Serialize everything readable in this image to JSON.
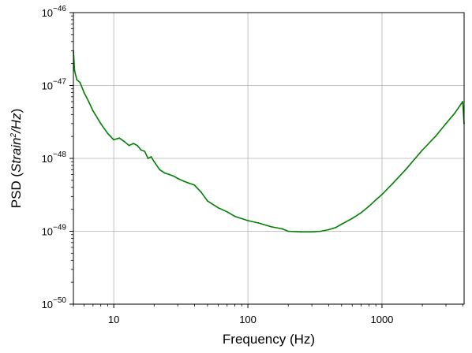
{
  "chart_data": {
    "type": "line",
    "title": "",
    "xlabel": "Frequency (Hz)",
    "ylabel": {
      "prefix": "PSD (",
      "strain": "Strain",
      "exp": "2",
      "rest": "/Hz",
      "suffix": ")"
    },
    "x_scale": "log",
    "y_scale": "log",
    "xlim": [
      5,
      4096
    ],
    "ylim": [
      1e-50,
      1e-46
    ],
    "grid": true,
    "x_ticks": [
      {
        "value": 10,
        "label": "10"
      },
      {
        "value": 100,
        "label": "100"
      },
      {
        "value": 1000,
        "label": "1000"
      }
    ],
    "y_ticks": [
      {
        "value": 1e-50,
        "base": "10",
        "exp": "−50"
      },
      {
        "value": 1e-49,
        "base": "10",
        "exp": "−49"
      },
      {
        "value": 1e-48,
        "base": "10",
        "exp": "−48"
      },
      {
        "value": 1e-47,
        "base": "10",
        "exp": "−47"
      },
      {
        "value": 1e-46,
        "base": "10",
        "exp": "−46"
      }
    ],
    "series": [
      {
        "color": "#008000",
        "x": [
          5.0,
          5.1,
          5.3,
          5.6,
          6.0,
          6.5,
          7.0,
          8.0,
          9.0,
          10.0,
          11.0,
          12.0,
          13.0,
          14.0,
          15.0,
          16.0,
          17.0,
          18.0,
          19.0,
          20.0,
          22.0,
          24.0,
          26.0,
          28.0,
          30.0,
          33.0,
          36.0,
          40.0,
          45.0,
          50.0,
          60.0,
          70.0,
          80.0,
          100.0,
          120.0,
          150.0,
          180.0,
          200.0,
          250.0,
          300.0,
          350.0,
          400.0,
          450.0,
          500.0,
          600.0,
          700.0,
          800.0,
          900.0,
          1000.0,
          1200.0,
          1500.0,
          2000.0,
          2500.0,
          3000.0,
          3500.0,
          4000.0,
          4096.0
        ],
        "y": [
          3e-47,
          1.6e-47,
          1.2e-47,
          1.1e-47,
          8e-48,
          6e-48,
          4.5e-48,
          3e-48,
          2.2e-48,
          1.8e-48,
          1.9e-48,
          1.7e-48,
          1.5e-48,
          1.6e-48,
          1.5e-48,
          1.3e-48,
          1.25e-48,
          1e-48,
          1.05e-48,
          9e-49,
          7e-49,
          6.3e-49,
          6e-49,
          5.7e-49,
          5.3e-49,
          4.9e-49,
          4.6e-49,
          4.3e-49,
          3.4e-49,
          2.6e-49,
          2.1e-49,
          1.85e-49,
          1.6e-49,
          1.4e-49,
          1.3e-49,
          1.15e-49,
          1.08e-49,
          1e-49,
          9.8e-50,
          9.8e-50,
          1e-49,
          1.05e-49,
          1.12e-49,
          1.25e-49,
          1.5e-49,
          1.8e-49,
          2.2e-49,
          2.7e-49,
          3.2e-49,
          4.5e-49,
          7e-49,
          1.3e-48,
          2e-48,
          3e-48,
          4.2e-48,
          6e-48,
          3e-48
        ]
      }
    ]
  }
}
